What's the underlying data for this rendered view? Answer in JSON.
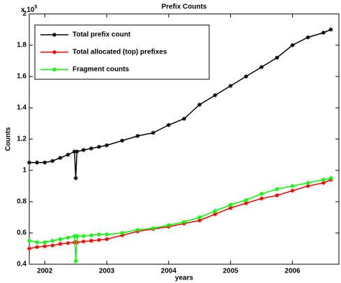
{
  "chart_data": {
    "type": "line",
    "title": "Prefix Counts",
    "xlabel": "years",
    "ylabel": "Counts",
    "y_multiplier": {
      "base": "x 10",
      "exponent": "5"
    },
    "x": [
      2001.75,
      2001.875,
      2002,
      2002.125,
      2002.25,
      2002.375,
      2002.48,
      2002.5,
      2002.52,
      2002.625,
      2002.75,
      2002.875,
      2003,
      2003.25,
      2003.5,
      2003.75,
      2004,
      2004.25,
      2004.5,
      2004.75,
      2005,
      2005.25,
      2005.5,
      2005.75,
      2006,
      2006.25,
      2006.5,
      2006.62
    ],
    "series": [
      {
        "name": "Total prefix count",
        "color": "#000000",
        "values": [
          1.05,
          1.05,
          1.05,
          1.06,
          1.08,
          1.1,
          1.12,
          0.95,
          1.12,
          1.13,
          1.14,
          1.15,
          1.16,
          1.19,
          1.22,
          1.24,
          1.29,
          1.33,
          1.42,
          1.48,
          1.54,
          1.6,
          1.66,
          1.72,
          1.8,
          1.85,
          1.88,
          1.9
        ]
      },
      {
        "name": "Total allocated (top) prefixes",
        "color": "#ff0000",
        "values": [
          0.5,
          0.51,
          0.515,
          0.52,
          0.53,
          0.535,
          0.54,
          0.54,
          0.54,
          0.545,
          0.55,
          0.555,
          0.56,
          0.585,
          0.61,
          0.625,
          0.64,
          0.66,
          0.68,
          0.72,
          0.76,
          0.79,
          0.82,
          0.84,
          0.87,
          0.9,
          0.92,
          0.94
        ]
      },
      {
        "name": "Fragment counts",
        "color": "#00ff00",
        "values": [
          0.55,
          0.54,
          0.54,
          0.55,
          0.56,
          0.57,
          0.58,
          0.42,
          0.58,
          0.58,
          0.585,
          0.59,
          0.59,
          0.6,
          0.62,
          0.63,
          0.65,
          0.67,
          0.7,
          0.74,
          0.78,
          0.81,
          0.85,
          0.88,
          0.9,
          0.92,
          0.94,
          0.95
        ]
      }
    ],
    "xlim": [
      2001.75,
      2006.75
    ],
    "xticks": [
      2002,
      2003,
      2004,
      2005,
      2006
    ],
    "ylim": [
      0.4,
      2
    ],
    "yticks": [
      0.4,
      0.6,
      0.8,
      1,
      1.2,
      1.4,
      1.6,
      1.8,
      2
    ],
    "grid": false,
    "legend": "upper left"
  }
}
